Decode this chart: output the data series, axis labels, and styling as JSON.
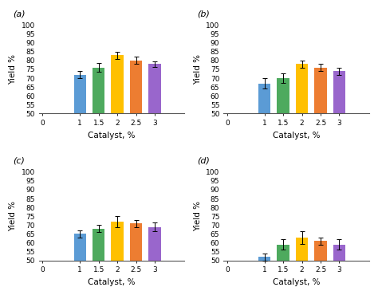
{
  "categories": [
    1,
    1.5,
    2,
    2.5,
    3
  ],
  "bar_colors": [
    "#5B9BD5",
    "#4EAA5E",
    "#FFC000",
    "#ED7D31",
    "#9966CC"
  ],
  "subplots": [
    {
      "label": "(a)",
      "values": [
        72,
        76,
        83,
        80,
        78
      ],
      "errors": [
        2,
        2.5,
        2,
        2,
        1.5
      ]
    },
    {
      "label": "(b)",
      "values": [
        67,
        70,
        78,
        76,
        74
      ],
      "errors": [
        3,
        2.5,
        2,
        2,
        2
      ]
    },
    {
      "label": "(c)",
      "values": [
        65,
        68,
        72,
        71,
        69
      ],
      "errors": [
        2,
        2,
        3,
        2,
        2.5
      ]
    },
    {
      "label": "(d)",
      "values": [
        52,
        59,
        63,
        61,
        59
      ],
      "errors": [
        2,
        3,
        3.5,
        2,
        3
      ]
    }
  ],
  "xlabel": "Catalyst, %",
  "ylabel": "Yield %",
  "ylim": [
    50,
    100
  ],
  "yticks": [
    50,
    55,
    60,
    65,
    70,
    75,
    80,
    85,
    90,
    95,
    100
  ],
  "xlim": [
    -0.1,
    3.8
  ],
  "xtick_vals": [
    0,
    1,
    1.5,
    2,
    2.5,
    3
  ],
  "xtick_labels": [
    "0",
    "1",
    "1.5",
    "2",
    "2.5",
    "3"
  ],
  "bar_width": 0.33,
  "label_fontsize": 8,
  "tick_fontsize": 6.5,
  "axis_label_fontsize": 7.5
}
